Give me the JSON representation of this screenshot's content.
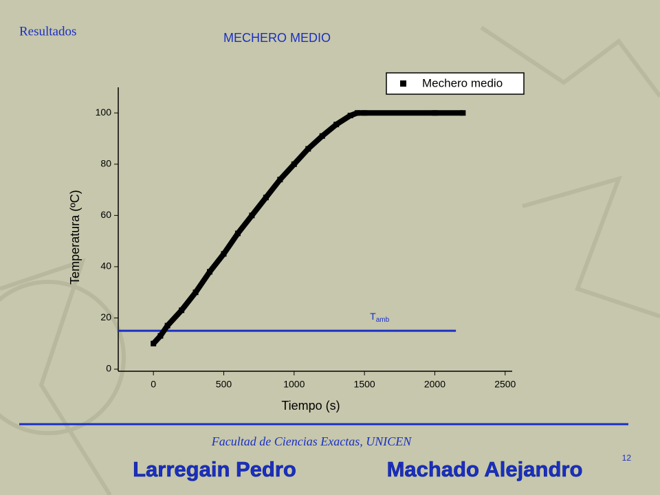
{
  "slide": {
    "section": "Resultados",
    "footer": "Facultad de Ciencias Exactas, UNICEN",
    "page_number": "12",
    "authors": [
      "Larregain Pedro",
      "Machado Alejandro"
    ]
  },
  "chart_data": {
    "type": "line",
    "title": "MECHERO MEDIO",
    "x_label": "Tiempo (s)",
    "y_label": "Temperatura (ºC)",
    "x": [
      0,
      50,
      100,
      200,
      300,
      400,
      500,
      600,
      700,
      800,
      900,
      1000,
      1100,
      1200,
      1300,
      1400,
      1450,
      1500,
      2000,
      2200
    ],
    "series": [
      {
        "name": "Mechero medio",
        "color": "#000000",
        "values": [
          10,
          13,
          17,
          23,
          30,
          38,
          45,
          53,
          60,
          67,
          74,
          80,
          86,
          91,
          95.5,
          99,
          100,
          100,
          100,
          100
        ]
      }
    ],
    "xlim": [
      -250,
      2550
    ],
    "ylim": [
      0,
      110
    ],
    "xticks": [
      0,
      500,
      1000,
      1500,
      2000,
      2500
    ],
    "yticks": [
      0,
      20,
      40,
      60,
      80,
      100
    ],
    "legend": "top-right",
    "reference_line": {
      "value": 15,
      "x_end": 2150,
      "color": "#1a2fc4",
      "label": "T",
      "label_sub": "amb"
    }
  }
}
